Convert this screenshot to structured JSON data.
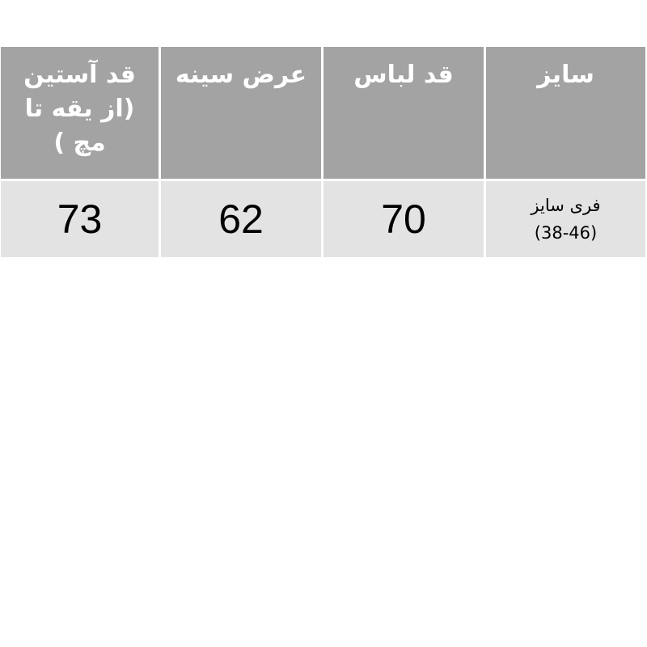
{
  "table": {
    "headers": [
      "سایز",
      "قد لباس",
      "عرض سینه",
      "قد آستین (از یقه تا مچ )"
    ],
    "rows": [
      {
        "size_line1": "فری سایز",
        "size_line2": "(38-46)",
        "length": "70",
        "chest": "62",
        "sleeve": "73"
      }
    ]
  },
  "colors": {
    "header_bg": "#a3a3a3",
    "row_bg": "#e3e3e3",
    "header_text": "#ffffff"
  }
}
